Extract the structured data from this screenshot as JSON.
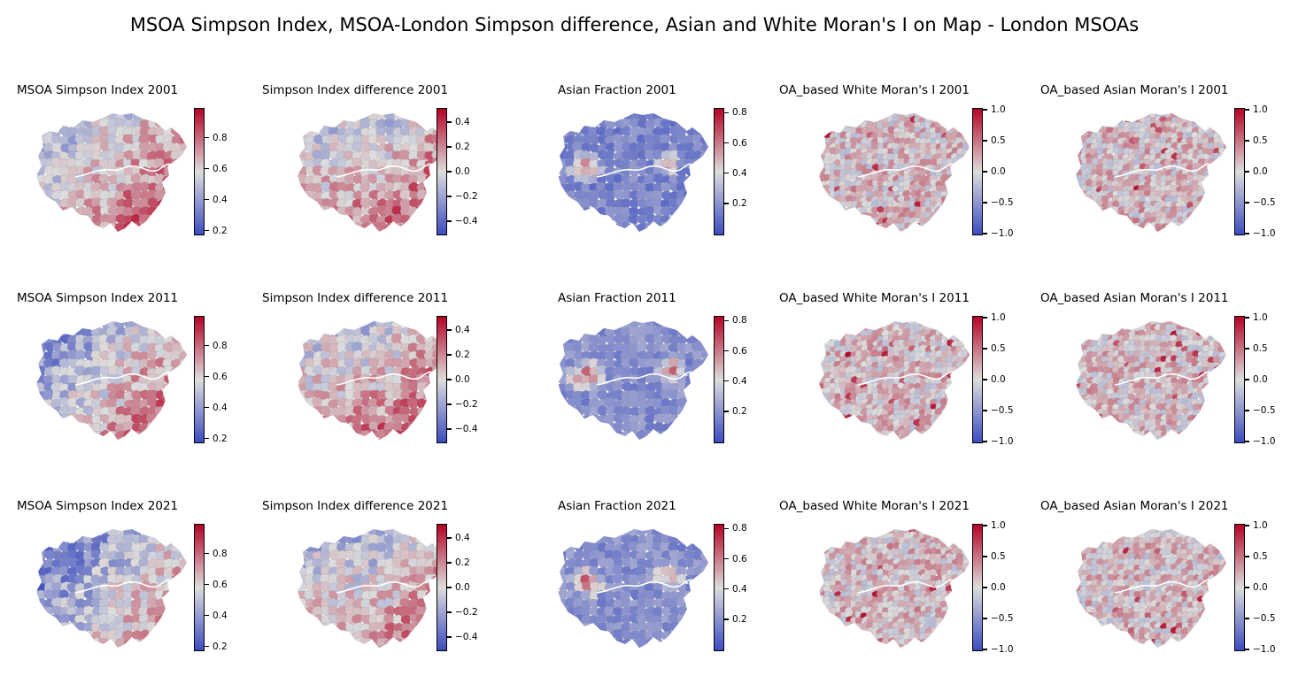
{
  "title": "MSOA Simpson Index, MSOA-London Simpson difference, Asian and White Moran's I on Map - London MSOAs",
  "colormap": {
    "name": "coolwarm",
    "low": "#3b4cc0",
    "mid": "#dddddd",
    "high": "#b40426"
  },
  "columns": [
    {
      "kind": "simpson",
      "ticks": [
        "0.2",
        "0.4",
        "0.6",
        "0.8"
      ],
      "tick_values": [
        0.2,
        0.4,
        0.6,
        0.8
      ],
      "range": [
        0.18,
        0.98
      ]
    },
    {
      "kind": "simpson-diff",
      "ticks": [
        "−0.4",
        "−0.2",
        "0.0",
        "0.2",
        "0.4"
      ],
      "tick_values": [
        -0.4,
        -0.2,
        0.0,
        0.2,
        0.4
      ],
      "range": [
        -0.5,
        0.5
      ]
    },
    {
      "kind": "asian-fraction",
      "ticks": [
        "0.2",
        "0.4",
        "0.6",
        "0.8"
      ],
      "tick_values": [
        0.2,
        0.4,
        0.6,
        0.8
      ],
      "range": [
        0.0,
        0.82
      ]
    },
    {
      "kind": "white-morans-i",
      "ticks": [
        "−1.0",
        "−0.5",
        "0.0",
        "0.5",
        "1.0"
      ],
      "tick_values": [
        -1.0,
        -0.5,
        0.0,
        0.5,
        1.0
      ],
      "range": [
        -1.0,
        1.0
      ]
    },
    {
      "kind": "asian-morans-i",
      "ticks": [
        "−1.0",
        "−0.5",
        "0.0",
        "0.5",
        "1.0"
      ],
      "tick_values": [
        -1.0,
        -0.5,
        0.0,
        0.5,
        1.0
      ],
      "range": [
        -1.0,
        1.0
      ]
    }
  ],
  "panels": [
    [
      "MSOA Simpson Index 2001",
      "Simpson Index difference 2001",
      "Asian Fraction 2001",
      "OA_based White Moran's I 2001",
      "OA_based Asian Moran's I 2001"
    ],
    [
      "MSOA Simpson Index 2011",
      "Simpson Index difference 2011",
      "Asian Fraction 2011",
      "OA_based White Moran's I 2011",
      "OA_based Asian Moran's I 2011"
    ],
    [
      "MSOA Simpson Index 2021",
      "Simpson Index difference 2021",
      "Asian Fraction 2021",
      "OA_based White Moran's I 2021",
      "OA_based Asian Moran's I 2021"
    ]
  ]
}
